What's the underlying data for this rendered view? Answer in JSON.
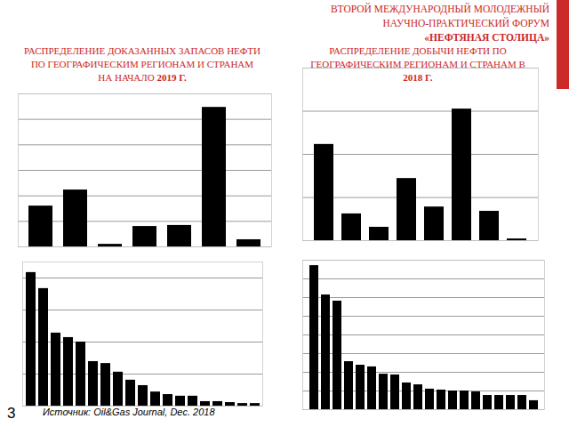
{
  "slide": {
    "header": [
      "ВТОРОЙ МЕЖДУНАРОДНЫЙ МОЛОДЕЖНЫЙ",
      "НАУЧНО-ПРАКТИЧЕСКИЙ ФОРУМ",
      "«НЕФТЯНАЯ СТОЛИЦА»"
    ],
    "source": "Источник: Oil&Gas Journal, Dec. 2018",
    "page_number": "3"
  },
  "chart_data": [
    {
      "type": "bar",
      "title": [
        "РАСПРЕДЕЛЕНИЕ ДОКАЗАННЫХ ЗАПАСОВ НЕФТИ",
        "ПО ГЕОГРАФИЧЕСКИМ РЕГИОНАМ И СТРАНАМ",
        "НА НАЧАЛО 2019 Г."
      ],
      "categories": [
        null,
        null,
        null,
        null,
        null,
        null,
        null
      ],
      "values": [
        1.6,
        2.23,
        0.1,
        0.8,
        0.84,
        5.47,
        0.28
      ],
      "color": "#000000",
      "ylim": [
        0,
        6
      ],
      "yticks": [
        0,
        1,
        2,
        3,
        4,
        5,
        6
      ],
      "grid": true,
      "tick_labels": false
    },
    {
      "type": "bar",
      "title": [
        "РАСПРЕДЕЛЕНИЕ ДОБЫЧИ НЕФТИ ПО",
        "ГЕОГРАФИЧЕСКИМ РЕГИОНАМ И СТРАНАМ В",
        "2018 Г."
      ],
      "categories": [
        null,
        null,
        null,
        null,
        null,
        null,
        null,
        null
      ],
      "values": [
        2.23,
        0.62,
        0.31,
        1.44,
        0.78,
        3.05,
        0.68,
        0.04
      ],
      "color": "#000000",
      "ylim": [
        0,
        4
      ],
      "yticks": [
        0,
        1,
        2,
        3,
        4
      ],
      "grid": true,
      "tick_labels": false
    },
    {
      "type": "bar",
      "categories": [
        null,
        null,
        null,
        null,
        null,
        null,
        null,
        null,
        null,
        null,
        null,
        null,
        null,
        null,
        null,
        null,
        null,
        null,
        null
      ],
      "values": [
        4.17,
        3.67,
        2.28,
        2.14,
        2.0,
        1.39,
        1.33,
        1.06,
        0.81,
        0.64,
        0.44,
        0.36,
        0.31,
        0.31,
        0.14,
        0.14,
        0.11,
        0.08,
        0.08
      ],
      "color": "#000000",
      "ylim": [
        0,
        4.5
      ],
      "yticks": [
        0,
        1,
        2,
        3,
        4
      ],
      "grid": true,
      "tick_labels": false
    },
    {
      "type": "bar",
      "categories": [
        null,
        null,
        null,
        null,
        null,
        null,
        null,
        null,
        null,
        null,
        null,
        null,
        null,
        null,
        null,
        null,
        null,
        null,
        null,
        null
      ],
      "values": [
        7.71,
        6.14,
        5.81,
        2.57,
        2.38,
        2.29,
        1.9,
        1.86,
        1.43,
        1.33,
        1.1,
        1.05,
        1.0,
        1.0,
        0.95,
        0.76,
        0.76,
        0.76,
        0.76,
        0.48
      ],
      "color": "#000000",
      "ylim": [
        0,
        8
      ],
      "yticks": [
        0,
        1,
        2,
        3,
        4,
        5,
        6,
        7,
        8
      ],
      "grid": true,
      "tick_labels": false
    }
  ]
}
